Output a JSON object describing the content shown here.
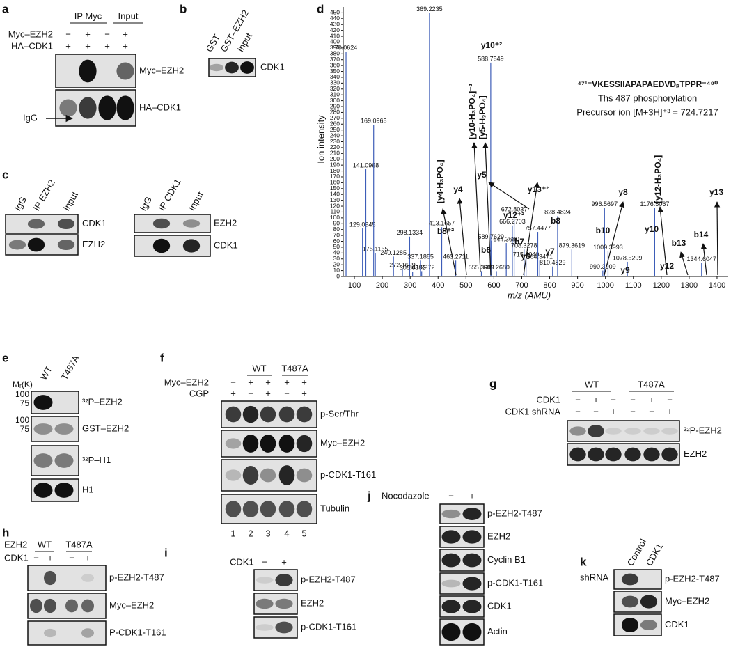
{
  "panels": {
    "a": {
      "label": "a",
      "groups": [
        "IP Myc",
        "Input"
      ],
      "rows": [
        {
          "name": "Myc–EZH2",
          "signs": [
            "−",
            "+",
            "−",
            "+"
          ]
        },
        {
          "name": "HA–CDK1",
          "signs": [
            "+",
            "+",
            "+",
            "+"
          ]
        }
      ],
      "blots": [
        "Myc–EZH2",
        "HA–CDK1"
      ],
      "marker": "IgG"
    },
    "b": {
      "label": "b",
      "lanes": [
        "GST",
        "GST–EZH2",
        "Input"
      ],
      "blots": [
        "CDK1"
      ]
    },
    "c": {
      "label": "c",
      "left": {
        "lanes": [
          "IgG",
          "IP EZH2",
          "Input"
        ],
        "blots": [
          "CDK1",
          "EZH2"
        ]
      },
      "right": {
        "lanes": [
          "IgG",
          "IP CDK1",
          "Input"
        ],
        "blots": [
          "EZH2",
          "CDK1"
        ]
      }
    },
    "d": {
      "label": "d",
      "y_label": "Ion intensity",
      "x_label": "m/z (AMU)",
      "peptide": "⁴⁷¹⁻VKESSIIAPAPAEDVDₚTPPR⁻⁴⁹⁰",
      "site": "Ths 487 phosphorylation",
      "precursor": "Precursor ion [M+3H]⁺³ = 724.7217",
      "xlim": [
        60,
        1440
      ],
      "ylim": [
        0,
        460
      ],
      "xticks": [
        100,
        200,
        300,
        400,
        500,
        600,
        700,
        800,
        900,
        1000,
        1100,
        1200,
        1300,
        1400
      ],
      "yticks": [
        0,
        10,
        20,
        30,
        40,
        50,
        60,
        70,
        80,
        90,
        100,
        110,
        120,
        130,
        140,
        150,
        160,
        170,
        180,
        190,
        200,
        210,
        220,
        230,
        240,
        250,
        260,
        270,
        280,
        290,
        300,
        310,
        320,
        330,
        340,
        350,
        360,
        370,
        380,
        390,
        400,
        410,
        420,
        430,
        440,
        450
      ],
      "peaks": [
        {
          "mz": 70.0624,
          "intensity": 384,
          "label": "70.0624"
        },
        {
          "mz": 129.0945,
          "intensity": 82,
          "label": "129.0945"
        },
        {
          "mz": 141.0968,
          "intensity": 183,
          "label": "141.0968"
        },
        {
          "mz": 169.0965,
          "intensity": 259,
          "label": "169.0965"
        },
        {
          "mz": 175.1165,
          "intensity": 40,
          "label": "175.1165"
        },
        {
          "mz": 240.1285,
          "intensity": 34,
          "label": "240.1285"
        },
        {
          "mz": 272.1629,
          "intensity": 13,
          "label": "272.1629"
        },
        {
          "mz": 298.1334,
          "intensity": 68,
          "label": "298.1334"
        },
        {
          "mz": 308.6882,
          "intensity": 8,
          "label": "308.6882"
        },
        {
          "mz": 337.1885,
          "intensity": 27,
          "label": "337.1885"
        },
        {
          "mz": 341.2272,
          "intensity": 9,
          "label": "341.2272"
        },
        {
          "mz": 369.2235,
          "intensity": 450,
          "label": "369.2235"
        },
        {
          "mz": 413.1657,
          "intensity": 84,
          "label": "413.1657"
        },
        {
          "mz": 463.2711,
          "intensity": 27,
          "label": "463.2711"
        },
        {
          "mz": 555.32,
          "intensity": 9,
          "label": "555.3200"
        },
        {
          "mz": 588.7549,
          "intensity": 365,
          "label": "588.7549"
        },
        {
          "mz": 589.7629,
          "intensity": 61,
          "label": "589.7629"
        },
        {
          "mz": 609.268,
          "intensity": 9,
          "label": "609.2680"
        },
        {
          "mz": 644.368,
          "intensity": 57,
          "label": "644.3680"
        },
        {
          "mz": 666.2703,
          "intensity": 87,
          "label": "666.2703"
        },
        {
          "mz": 672.8037,
          "intensity": 108,
          "label": "672.8037"
        },
        {
          "mz": 708.3278,
          "intensity": 46,
          "label": "708.3278"
        },
        {
          "mz": 715.404,
          "intensity": 31,
          "label": "715.4040"
        },
        {
          "mz": 757.4477,
          "intensity": 76,
          "label": "757.4477"
        },
        {
          "mz": 764.3471,
          "intensity": 27,
          "label": "764.3471"
        },
        {
          "mz": 810.4829,
          "intensity": 17,
          "label": "810.4829"
        },
        {
          "mz": 828.4824,
          "intensity": 103,
          "label": "828.4824"
        },
        {
          "mz": 879.3619,
          "intensity": 46,
          "label": "879.3619"
        },
        {
          "mz": 990.3909,
          "intensity": 10,
          "label": "990.3909"
        },
        {
          "mz": 996.5697,
          "intensity": 117,
          "label": "996.5697"
        },
        {
          "mz": 1009.3993,
          "intensity": 43,
          "label": "1009.3993"
        },
        {
          "mz": 1078.5299,
          "intensity": 25,
          "label": "1078.5299"
        },
        {
          "mz": 1176.5067,
          "intensity": 117,
          "label": "1176.5067"
        },
        {
          "mz": 1344.6047,
          "intensity": 23,
          "label": "1344.6047"
        }
      ],
      "ions": [
        "y10⁺²",
        "[y4-H₃PO₄]",
        "[y10-H₃PO₄]⁻²",
        "[y5-H₃PO₄]",
        "y4",
        "b8⁺²",
        "y5",
        "y12⁺²",
        "y13⁺²",
        "b6",
        "b7",
        "b8",
        "y6",
        "y7",
        "b10",
        "y8",
        "y9",
        "y10",
        "[y12-H₃PO₄]",
        "b13",
        "b14",
        "y12",
        "y13"
      ]
    },
    "e": {
      "label": "e",
      "mw_unit": "Mᵣ(K)",
      "lanes": [
        "WT",
        "T487A"
      ],
      "blots": [
        "³²P–EZH2",
        "GST–EZH2",
        "³²P–H1",
        "H1"
      ],
      "mw": [
        [
          "100",
          "75"
        ],
        [
          "100",
          "75"
        ]
      ]
    },
    "f": {
      "label": "f",
      "groups": [
        "WT",
        "T487A"
      ],
      "rows": [
        {
          "name": "Myc–EZH2",
          "signs": [
            "−",
            "+",
            "+",
            "+",
            "+"
          ]
        },
        {
          "name": "CGP",
          "signs": [
            "+",
            "−",
            "+",
            "−",
            "+"
          ]
        }
      ],
      "blots": [
        "p-Ser/Thr",
        "Myc–EZH2",
        "p-CDK1-T161",
        "Tubulin"
      ],
      "lane_numbers": [
        "1",
        "2",
        "3",
        "4",
        "5"
      ]
    },
    "g": {
      "label": "g",
      "groups": [
        "WT",
        "T487A"
      ],
      "rows": [
        {
          "name": "CDK1",
          "signs": [
            "−",
            "+",
            "−",
            "−",
            "+",
            "−"
          ]
        },
        {
          "name": "CDK1 shRNA",
          "signs": [
            "−",
            "−",
            "+",
            "−",
            "−",
            "+"
          ]
        }
      ],
      "blots": [
        "³²P-EZH2",
        "EZH2"
      ]
    },
    "h": {
      "label": "h",
      "group_row": "EZH2",
      "groups": [
        "WT",
        "T487A"
      ],
      "rows": [
        {
          "name": "CDK1",
          "signs": [
            "−",
            "+",
            "−",
            "+"
          ]
        }
      ],
      "blots": [
        "p-EZH2-T487",
        "Myc–EZH2",
        "P-CDK1-T161"
      ]
    },
    "i": {
      "label": "i",
      "rows": [
        {
          "name": "CDK1",
          "signs": [
            "−",
            "+"
          ]
        }
      ],
      "blots": [
        "p-EZH2-T487",
        "EZH2",
        "p-CDK1-T161"
      ]
    },
    "j": {
      "label": "j",
      "rows": [
        {
          "name": "Nocodazole",
          "signs": [
            "−",
            "+"
          ]
        }
      ],
      "blots": [
        "p-EZH2-T487",
        "EZH2",
        "Cyclin B1",
        "p-CDK1-T161",
        "CDK1",
        "Actin"
      ]
    },
    "k": {
      "label": "k",
      "row": "shRNA",
      "lanes": [
        "Control",
        "CDK1"
      ],
      "blots": [
        "p-EZH2-T487",
        "Myc–EZH2",
        "CDK1"
      ]
    }
  }
}
